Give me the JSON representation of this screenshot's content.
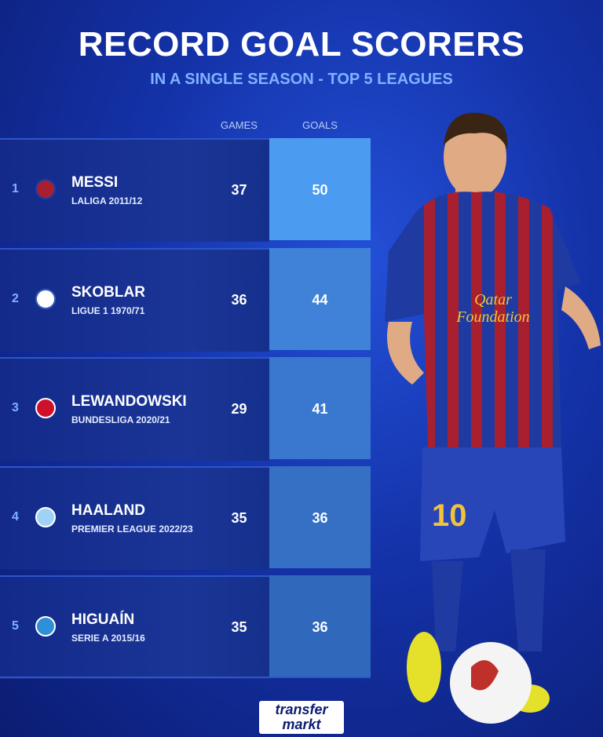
{
  "header": {
    "title": "RECORD GOAL SCORERS",
    "subtitle": "IN A SINGLE SEASON - TOP 5 LEAGUES"
  },
  "table": {
    "columns": [
      "GAMES",
      "GOALS"
    ],
    "rows": [
      {
        "rank": "1",
        "name": "MESSI",
        "season": "LALIGA 2011/12",
        "games": "37",
        "goals": "50"
      },
      {
        "rank": "2",
        "name": "SKOBLAR",
        "season": "LIGUE 1 1970/71",
        "games": "36",
        "goals": "44"
      },
      {
        "rank": "3",
        "name": "LEWANDOWSKI",
        "season": "BUNDESLIGA 2020/21",
        "games": "29",
        "goals": "41"
      },
      {
        "rank": "4",
        "name": "HAALAND",
        "season": "PREMIER LEAGUE 2022/23",
        "games": "35",
        "goals": "36"
      },
      {
        "rank": "5",
        "name": "HIGUAÍN",
        "season": "SERIE A 2015/16",
        "games": "35",
        "goals": "36"
      }
    ]
  },
  "image": {
    "shirt_text": [
      "Qatar",
      "Foundation"
    ],
    "shorts_number": "10"
  },
  "footer": {
    "logo": [
      "transfer",
      "markt"
    ]
  }
}
